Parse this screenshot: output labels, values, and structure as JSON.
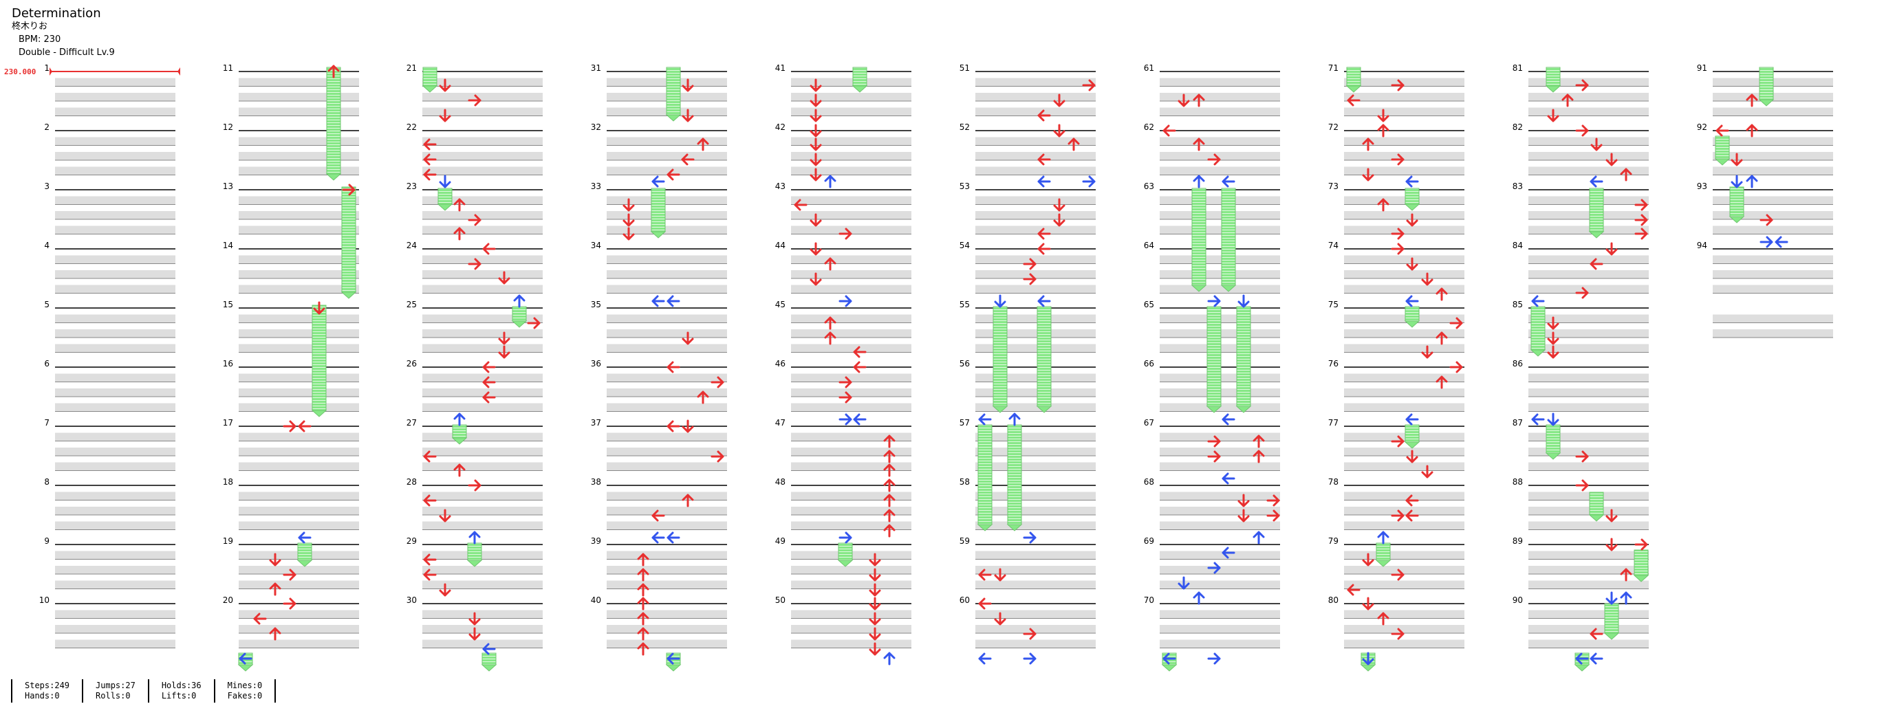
{
  "song": {
    "title": "Determination",
    "artist": "柊木りお",
    "bpm_label": "BPM: 230",
    "chart_label": "Double - Difficult Lv.9"
  },
  "bpm_marker": {
    "label": "230.000",
    "color": "#e83030"
  },
  "colors": {
    "tap": "#e83030",
    "accent": "#3355ee",
    "hold": "#86e886",
    "band": "#dedede"
  },
  "measure_labels": [
    "1",
    "2",
    "3",
    "4",
    "5",
    "6",
    "7",
    "8",
    "9",
    "10",
    "11",
    "12",
    "13",
    "14",
    "15",
    "16",
    "17",
    "18",
    "19",
    "20",
    "21",
    "22",
    "23",
    "24",
    "25",
    "26",
    "27",
    "28",
    "29",
    "30",
    "31",
    "32",
    "33",
    "34",
    "35",
    "36",
    "37",
    "38",
    "39",
    "40",
    "41",
    "42",
    "43",
    "44",
    "45",
    "46",
    "47",
    "48",
    "49",
    "50",
    "51",
    "52",
    "53",
    "54",
    "55",
    "56",
    "57",
    "58",
    "59",
    "60",
    "61",
    "62",
    "63",
    "64",
    "65",
    "66",
    "67",
    "68",
    "69",
    "70",
    "71",
    "72",
    "73",
    "74",
    "75",
    "76",
    "77",
    "78",
    "79",
    "80",
    "81",
    "82",
    "83",
    "84",
    "85",
    "86",
    "87",
    "88",
    "89",
    "90",
    "91",
    "92",
    "93",
    "94"
  ],
  "stats": {
    "steps": "Steps:249",
    "hands": "Hands:0",
    "jumps": "Jumps:27",
    "rolls": "Rolls:0",
    "holds": "Holds:36",
    "lifts": "Lifts:0",
    "mines": "Mines:0",
    "fakes": "Fakes:0"
  }
}
